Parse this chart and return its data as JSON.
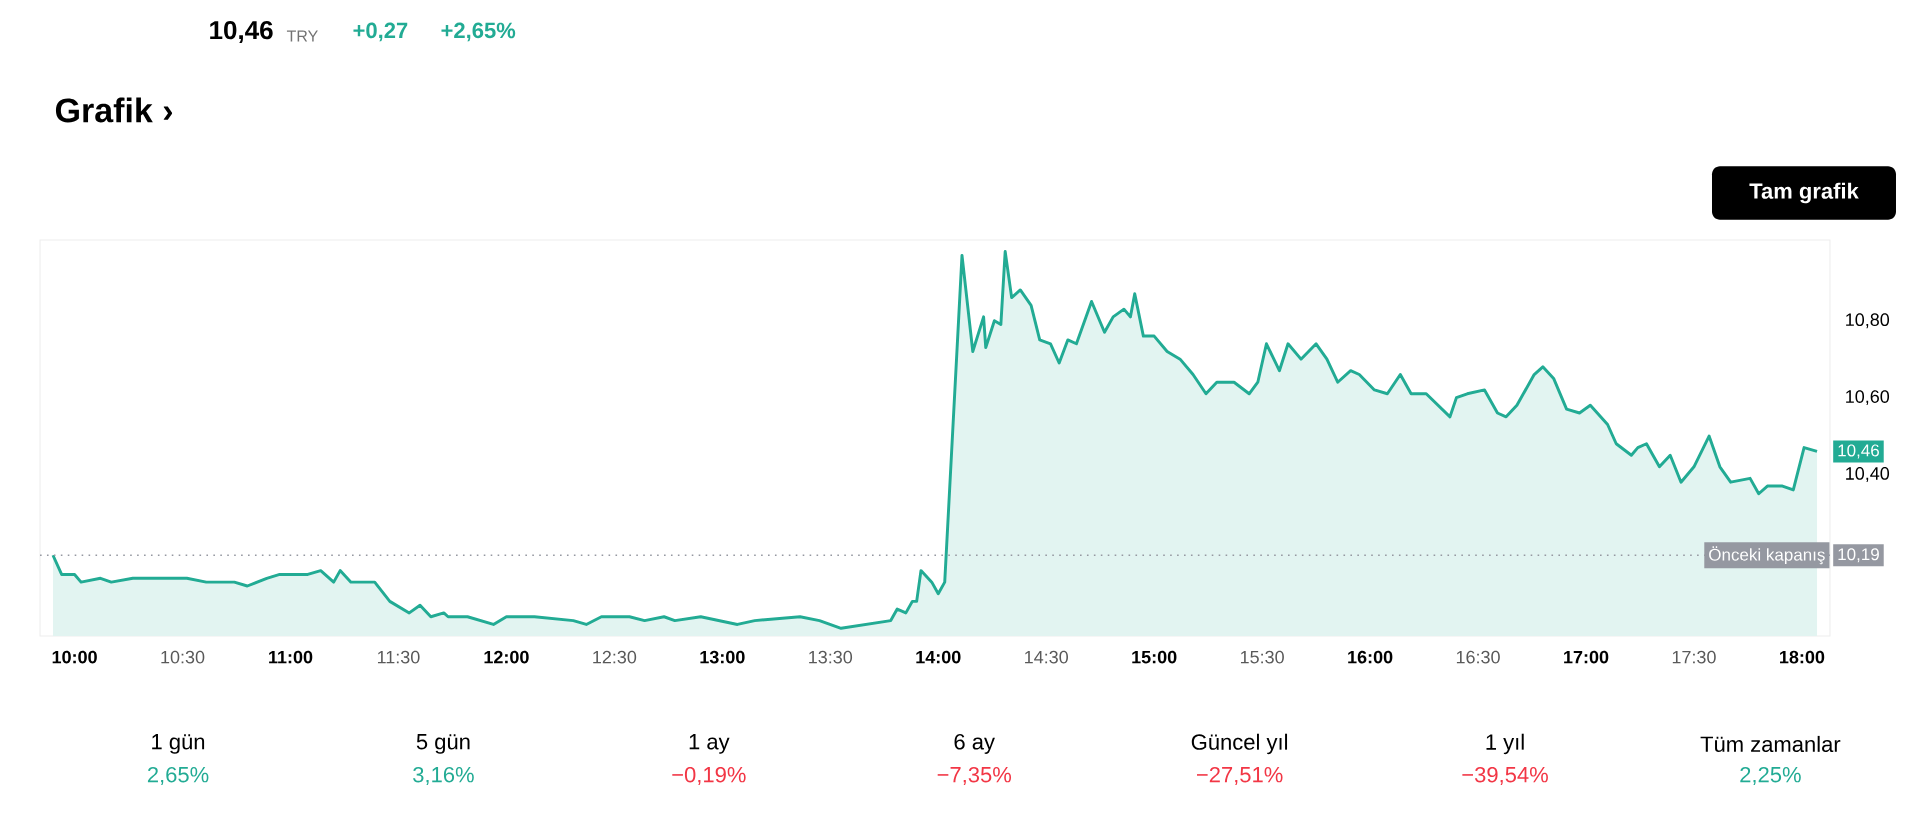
{
  "chart_data": [
    {
      "type": "area",
      "title": "Grafik ›",
      "x": [
        9.9,
        9.94,
        10.0,
        10.03,
        10.12,
        10.17,
        10.27,
        10.52,
        10.61,
        10.74,
        10.8,
        10.89,
        10.95,
        11.08,
        11.14,
        11.2,
        11.23,
        11.28,
        11.39,
        11.46,
        11.55,
        11.6,
        11.65,
        11.71,
        11.73,
        11.82,
        11.94,
        12.0,
        12.1,
        12.13,
        12.31,
        12.37,
        12.44,
        12.57,
        12.64,
        12.73,
        12.78,
        12.9,
        13.07,
        13.15,
        13.36,
        13.45,
        13.55,
        13.78,
        13.81,
        13.85,
        13.88,
        13.9,
        13.92,
        13.97,
        14.0,
        14.03,
        14.11,
        14.16,
        14.21,
        14.22,
        14.26,
        14.29,
        14.31,
        14.34,
        14.38,
        14.43,
        14.47,
        14.52,
        14.56,
        14.6,
        14.64,
        14.71,
        14.77,
        14.81,
        14.86,
        14.89,
        14.91,
        14.95,
        15.0,
        15.06,
        15.12,
        15.18,
        15.24,
        15.29,
        15.37,
        15.44,
        15.48,
        15.52,
        15.58,
        15.62,
        15.68,
        15.75,
        15.8,
        15.85,
        15.91,
        15.95,
        16.02,
        16.08,
        16.14,
        16.19,
        16.26,
        16.37,
        16.4,
        16.45,
        16.53,
        16.59,
        16.63,
        16.68,
        16.76,
        16.8,
        16.85,
        16.91,
        16.97,
        17.02,
        17.1,
        17.14,
        17.21,
        17.24,
        17.28,
        17.34,
        17.39,
        17.44,
        17.5,
        17.57,
        17.62,
        17.67,
        17.76,
        17.8,
        17.84,
        17.91,
        17.96,
        18.01,
        18.07
      ],
      "series": [
        {
          "color": "#22ab94",
          "values": [
            10.19,
            10.14,
            10.14,
            10.12,
            10.13,
            10.12,
            10.13,
            10.13,
            10.12,
            10.12,
            10.11,
            10.13,
            10.14,
            10.14,
            10.15,
            10.12,
            10.15,
            10.12,
            10.12,
            10.07,
            10.04,
            10.06,
            10.03,
            10.04,
            10.03,
            10.03,
            10.01,
            10.03,
            10.03,
            10.03,
            10.02,
            10.01,
            10.03,
            10.03,
            10.02,
            10.03,
            10.02,
            10.03,
            10.01,
            10.02,
            10.03,
            10.02,
            10.0,
            10.02,
            10.05,
            10.04,
            10.07,
            10.07,
            10.15,
            10.12,
            10.09,
            10.12,
            10.97,
            10.72,
            10.81,
            10.73,
            10.8,
            10.79,
            10.98,
            10.86,
            10.88,
            10.84,
            10.75,
            10.74,
            10.69,
            10.75,
            10.74,
            10.85,
            10.77,
            10.81,
            10.83,
            10.81,
            10.87,
            10.76,
            10.76,
            10.72,
            10.7,
            10.66,
            10.61,
            10.64,
            10.64,
            10.61,
            10.64,
            10.74,
            10.67,
            10.74,
            10.7,
            10.74,
            10.7,
            10.64,
            10.67,
            10.66,
            10.62,
            10.61,
            10.66,
            10.61,
            10.61,
            10.55,
            10.6,
            10.61,
            10.62,
            10.56,
            10.55,
            10.58,
            10.66,
            10.68,
            10.65,
            10.57,
            10.56,
            10.58,
            10.53,
            10.48,
            10.45,
            10.47,
            10.48,
            10.42,
            10.45,
            10.38,
            10.42,
            10.5,
            10.42,
            10.38,
            10.39,
            10.35,
            10.37,
            10.37,
            10.36,
            10.47,
            10.46
          ]
        }
      ],
      "xlim": [
        9.84,
        18.13
      ],
      "ylim": [
        9.98,
        11.01
      ],
      "xticks": [
        {
          "value": 10,
          "label": "10:00"
        },
        {
          "value": 10.5,
          "label": "10:30"
        },
        {
          "value": 11,
          "label": "11:00"
        },
        {
          "value": 11.5,
          "label": "11:30"
        },
        {
          "value": 12,
          "label": "12:00"
        },
        {
          "value": 12.5,
          "label": "12:30"
        },
        {
          "value": 13,
          "label": "13:00"
        },
        {
          "value": 13.5,
          "label": "13:30"
        },
        {
          "value": 14,
          "label": "14:00"
        },
        {
          "value": 14.5,
          "label": "14:30"
        },
        {
          "value": 15,
          "label": "15:00"
        },
        {
          "value": 15.5,
          "label": "15:30"
        },
        {
          "value": 16,
          "label": "16:00"
        },
        {
          "value": 16.5,
          "label": "16:30"
        },
        {
          "value": 17,
          "label": "17:00"
        },
        {
          "value": 17.5,
          "label": "17:30"
        },
        {
          "value": 18,
          "label": "18:00"
        }
      ],
      "yticks": [
        {
          "value": 10.4,
          "label": "10,40"
        },
        {
          "value": 10.6,
          "label": "10,60"
        },
        {
          "value": 10.8,
          "label": "10,80"
        }
      ],
      "ref_lines": [
        {
          "axis": "y",
          "value": 10.19,
          "label": "Önceki kapanış",
          "color": "#9598a1",
          "line_style": "dotted"
        }
      ],
      "annotations": [
        "10,46",
        "TRY",
        "+0,27",
        "+2,65%",
        "Tam grafik",
        {
          "text": "10,46",
          "y": 10.46
        },
        {
          "text": "10,19",
          "y": 10.19
        }
      ],
      "marker": "none",
      "line_style": "solid"
    },
    {
      "type": "other",
      "categories": [
        "1 gün",
        "5 gün",
        "1 ay",
        "6 ay",
        "Güncel yıl",
        "1 yıl",
        "Tüm zamanlar"
      ],
      "value_labels": [
        "2,65%",
        "3,16%",
        "−0,19%",
        "−7,35%",
        "−27,51%",
        "−39,54%",
        "2,25%"
      ],
      "colors": [
        "#22ab94",
        "#22ab94",
        "#f23645",
        "#f23645",
        "#f23645",
        "#f23645",
        "#22ab94"
      ]
    }
  ]
}
